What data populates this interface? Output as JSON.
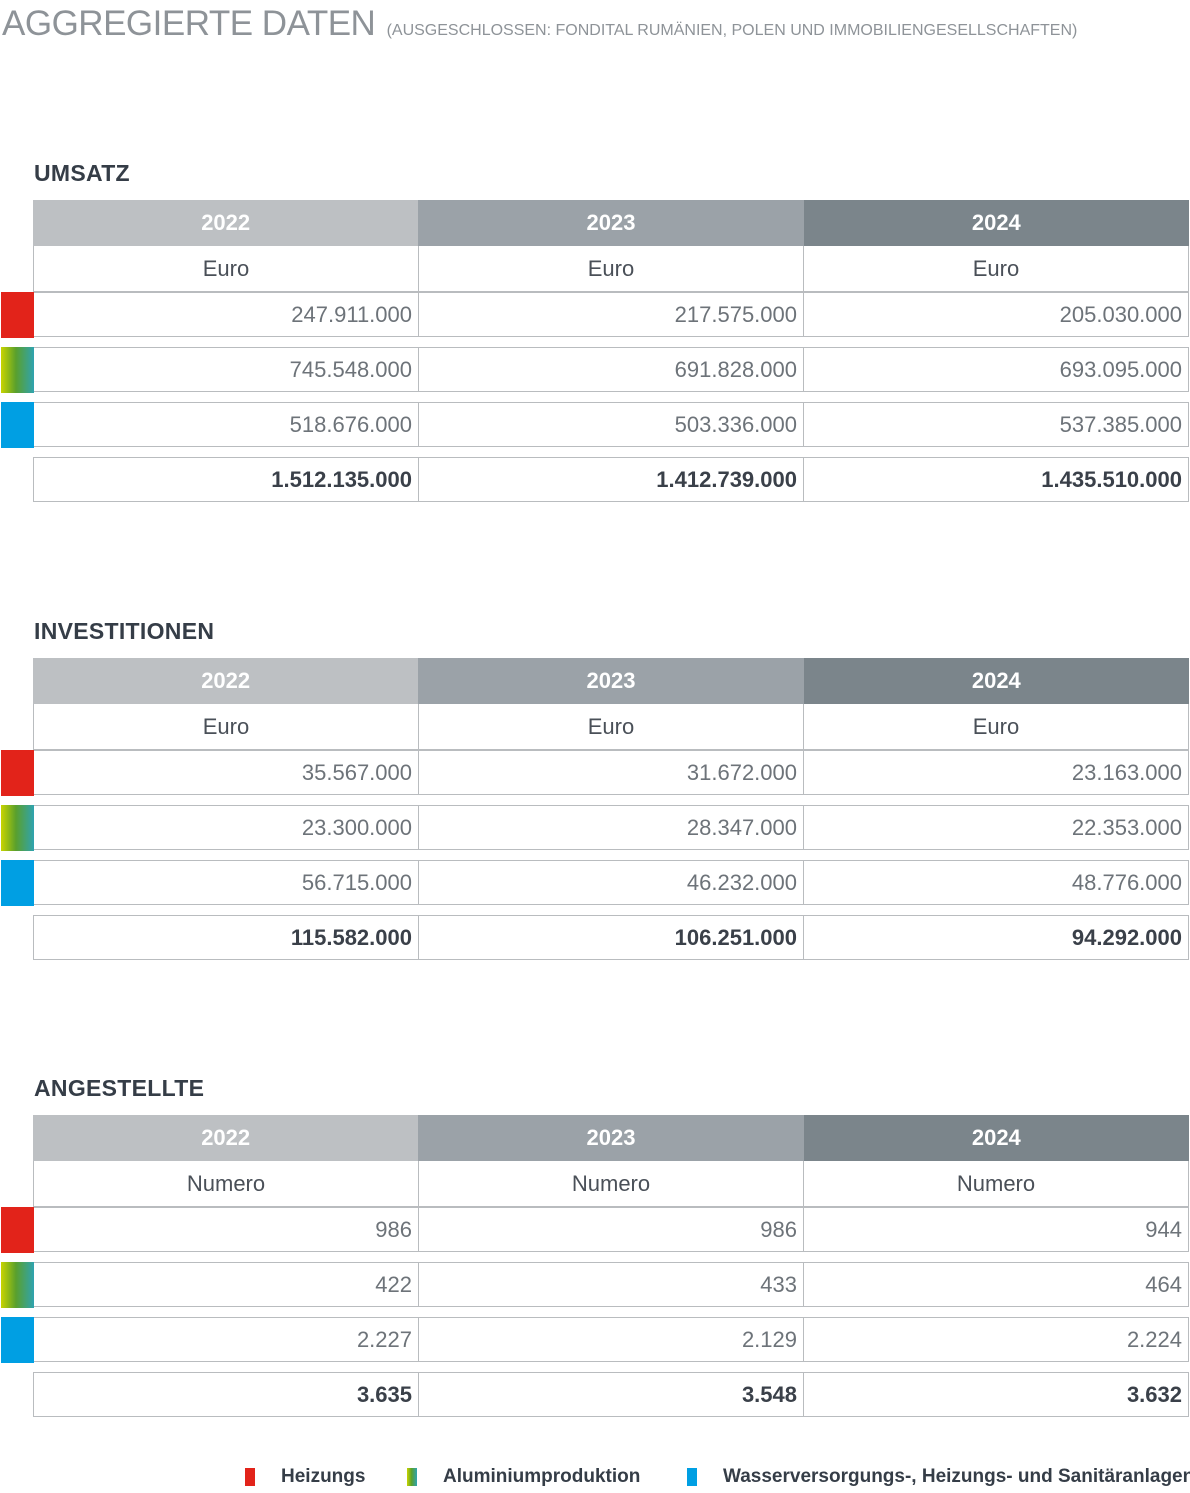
{
  "title": "AGGREGIERTE DATEN",
  "subtitle": "(AUSGESCHLOSSEN: FONDITAL RUMÄNIEN, POLEN UND IMMOBILIENGESELLSCHAFTEN)",
  "colors": {
    "heizungs": "#e2231a",
    "aluminium": "gradient #c8d400 → #5aa02c → #2fa3b0",
    "wasser": "#009fe3",
    "header_2022": "#bdc0c3",
    "header_2023": "#9ba2a8",
    "header_2024": "#7b858b"
  },
  "sections": [
    {
      "title": "UMSATZ",
      "years": [
        "2022",
        "2023",
        "2024"
      ],
      "units": [
        "Euro",
        "Euro",
        "Euro"
      ],
      "rows": [
        [
          "247.911.000",
          "217.575.000",
          "205.030.000"
        ],
        [
          "745.548.000",
          "691.828.000",
          "693.095.000"
        ],
        [
          "518.676.000",
          "503.336.000",
          "537.385.000"
        ]
      ],
      "total": [
        "1.512.135.000",
        "1.412.739.000",
        "1.435.510.000"
      ]
    },
    {
      "title": "INVESTITIONEN",
      "years": [
        "2022",
        "2023",
        "2024"
      ],
      "units": [
        "Euro",
        "Euro",
        "Euro"
      ],
      "rows": [
        [
          "35.567.000",
          "31.672.000",
          "23.163.000"
        ],
        [
          "23.300.000",
          "28.347.000",
          "22.353.000"
        ],
        [
          "56.715.000",
          "46.232.000",
          "48.776.000"
        ]
      ],
      "total": [
        "115.582.000",
        "106.251.000",
        "94.292.000"
      ]
    },
    {
      "title": "ANGESTELLTE",
      "years": [
        "2022",
        "2023",
        "2024"
      ],
      "units": [
        "Numero",
        "Numero",
        "Numero"
      ],
      "rows": [
        [
          "986",
          "986",
          "944"
        ],
        [
          "422",
          "433",
          "464"
        ],
        [
          "2.227",
          "2.129",
          "2.224"
        ]
      ],
      "total": [
        "3.635",
        "3.548",
        "3.632"
      ]
    }
  ],
  "legend": [
    {
      "label": "Heizungs",
      "color": "red"
    },
    {
      "label": "Aluminiumproduktion",
      "color": "green-gradient"
    },
    {
      "label": "Wasserversorgungs-, Heizungs- und Sanitäranlagen",
      "color": "blue"
    }
  ]
}
